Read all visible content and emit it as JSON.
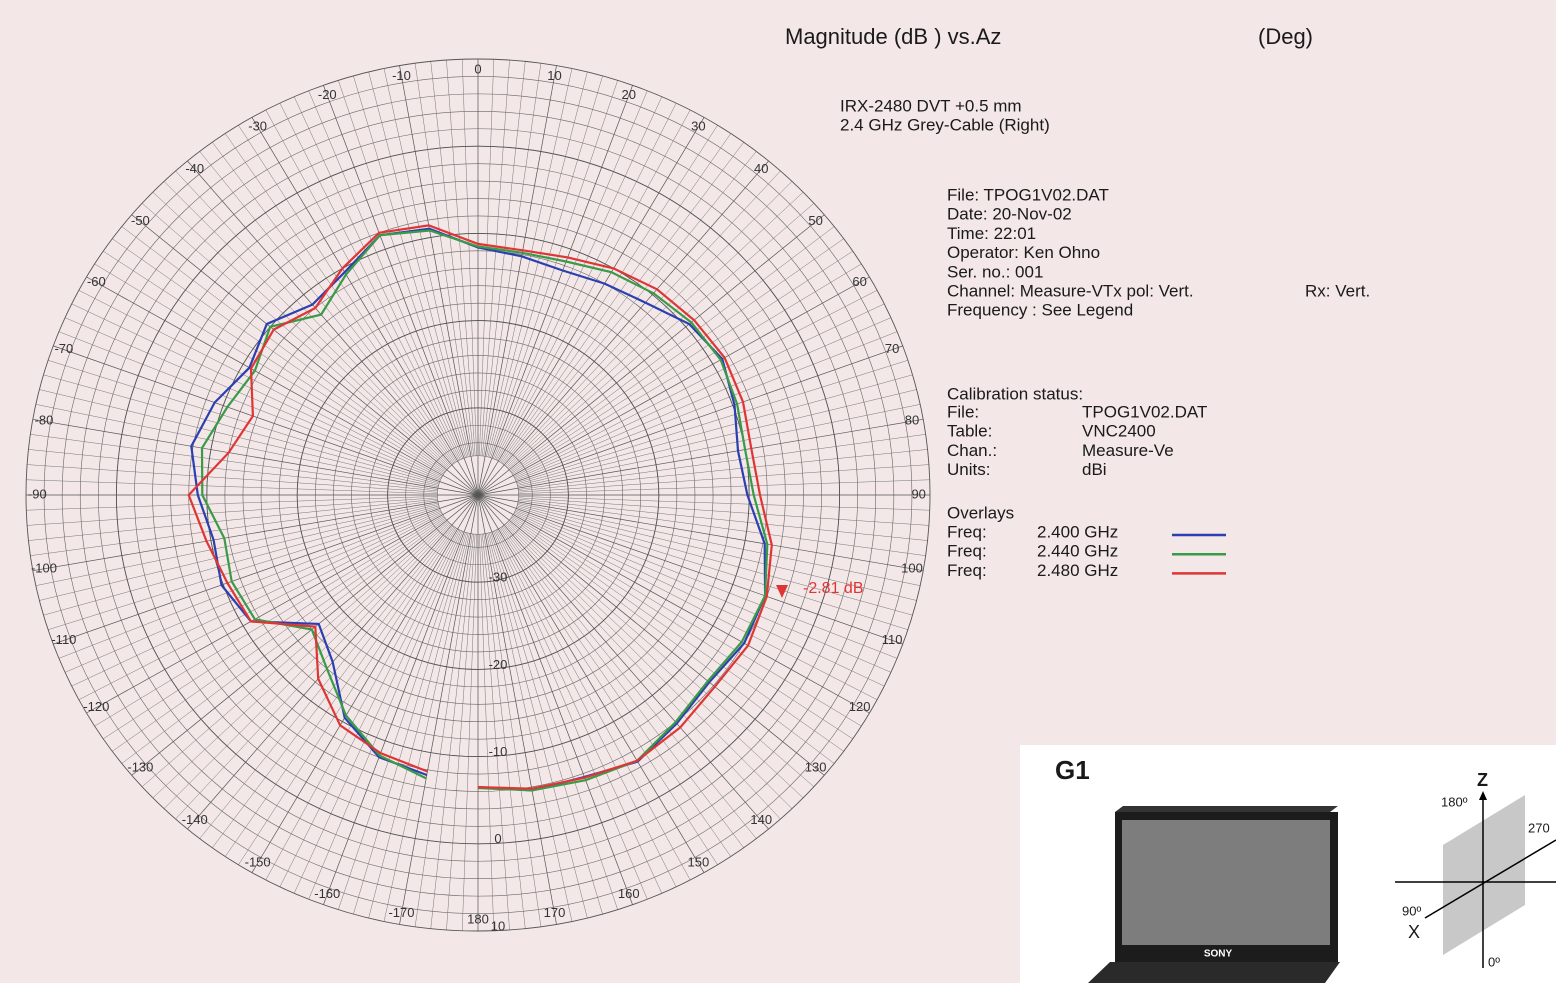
{
  "chart_data": {
    "type": "polar",
    "title": "Magnitude (dB ) vs.Az",
    "title_unit": "(Deg)",
    "subtitle": [
      "IRX-2480 DVT +0.5 mm",
      "2.4 GHz Grey-Cable (Right)"
    ],
    "info": [
      "File: TPOG1V02.DAT",
      "Date: 20-Nov-02",
      "Time:  22:01",
      "Operator: Ken Ohno",
      "Ser. no.: 001",
      "Channel: Measure-VTx pol: Vert.",
      "Frequency : See Legend"
    ],
    "info_rx": "Rx: Vert.",
    "calibration_heading": "Calibration status:",
    "calibration": [
      [
        "File:",
        "TPOG1V02.DAT"
      ],
      [
        "Table:",
        "VNC2400"
      ],
      [
        "Chan.:",
        "Measure-Ve"
      ],
      [
        "Units:",
        "dBi"
      ]
    ],
    "overlays_heading": "Overlays",
    "legend_prefix": "Freq:",
    "annotation": "-2.81 dB",
    "rlim": [
      -40,
      10
    ],
    "rticks": [
      -30,
      -20,
      -10,
      0,
      10
    ],
    "angle_ticks": [
      0,
      10,
      20,
      30,
      40,
      50,
      60,
      70,
      80,
      90,
      100,
      110,
      120,
      130,
      140,
      150,
      160,
      170,
      180,
      -170,
      -160,
      -150,
      -140,
      -130,
      -120,
      -110,
      -100,
      -90,
      -80,
      -70,
      -60,
      -50,
      -40,
      -30,
      -20,
      -10
    ],
    "grid": true,
    "x": [
      -170,
      -160,
      -150,
      -140,
      -130,
      -120,
      -110,
      -100,
      -90,
      -80,
      -70,
      -60,
      -50,
      -40,
      -30,
      -20,
      -10,
      0,
      10,
      20,
      30,
      40,
      50,
      60,
      70,
      80,
      90,
      100,
      110,
      120,
      130,
      140,
      150,
      160,
      170,
      180
    ],
    "series": [
      {
        "name": "2.400 GHz",
        "color": "#2b3fb0",
        "values": [
          -7.4,
          -8.0,
          -10.5,
          -15,
          -17,
          -11,
          -9.8,
          -10.3,
          -9,
          -7.8,
          -9,
          -10.8,
          -9.5,
          -11.5,
          -10.5,
          -8.3,
          -9,
          -11.6,
          -12.2,
          -12.6,
          -12,
          -11.2,
          -9.5,
          -8.8,
          -9.8,
          -10.8,
          -10.2,
          -7.8,
          -6.2,
          -6,
          -6.6,
          -5.8,
          -4.7,
          -5.6,
          -5.6,
          -6.5
        ]
      },
      {
        "name": "2.440 GHz",
        "color": "#3a9a48",
        "values": [
          -7.0,
          -8.2,
          -10.8,
          -14,
          -16,
          -11.5,
          -11,
          -11.5,
          -9.5,
          -9,
          -10.5,
          -11.5,
          -10,
          -13,
          -10.8,
          -8.3,
          -9.2,
          -11.5,
          -11.8,
          -11.5,
          -10.5,
          -9.8,
          -9.2,
          -9,
          -9.5,
          -10,
          -9.5,
          -7.5,
          -6.2,
          -6.3,
          -6.8,
          -6,
          -4.8,
          -5.2,
          -5.6,
          -6.4
        ]
      },
      {
        "name": "2.480 GHz",
        "color": "#e03535",
        "values": [
          -7.8,
          -8.5,
          -9.5,
          -12.5,
          -16.5,
          -11,
          -10.5,
          -9.5,
          -8,
          -12,
          -13.5,
          -11,
          -10.5,
          -12,
          -10,
          -8,
          -8.6,
          -11.2,
          -11.5,
          -11,
          -10,
          -9.2,
          -8.8,
          -8.5,
          -8.8,
          -9.3,
          -8.8,
          -7,
          -6,
          -5.5,
          -5.8,
          -5.2,
          -4.8,
          -5.5,
          -5.8,
          -6.5
        ]
      }
    ]
  },
  "inset": {
    "title": "G1",
    "brand": "SONY",
    "axis_z": "Z",
    "angle_top": "180º",
    "angle_right": "270",
    "angle_left": "90º",
    "axis_x": "X",
    "angle_bottom": "0º"
  }
}
